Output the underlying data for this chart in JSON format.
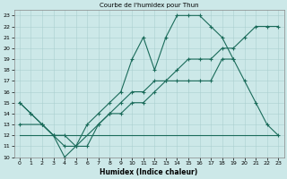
{
  "title": "Courbe de l'humidex pour Thun",
  "xlabel": "Humidex (Indice chaleur)",
  "xlim": [
    -0.5,
    23.5
  ],
  "ylim": [
    10,
    23.5
  ],
  "yticks": [
    10,
    11,
    12,
    13,
    14,
    15,
    16,
    17,
    18,
    19,
    20,
    21,
    22,
    23
  ],
  "xticks": [
    0,
    1,
    2,
    3,
    4,
    5,
    6,
    7,
    8,
    9,
    10,
    11,
    12,
    13,
    14,
    15,
    16,
    17,
    18,
    19,
    20,
    21,
    22,
    23
  ],
  "bg_color": "#cce8e8",
  "line_color": "#1a6b5a",
  "flat_line_x": [
    0,
    23
  ],
  "flat_line_y": [
    12,
    12
  ],
  "line2_x": [
    0,
    2,
    3,
    4,
    5,
    7,
    8,
    9,
    10,
    11,
    12,
    13,
    14,
    15,
    16,
    17,
    18,
    19,
    20,
    21,
    22,
    23
  ],
  "line2_y": [
    13,
    13,
    12,
    11,
    11,
    13,
    14,
    15,
    16,
    16,
    17,
    17,
    18,
    19,
    19,
    19,
    20,
    20,
    21,
    22,
    22,
    22
  ],
  "line3_x": [
    0,
    1,
    2,
    3,
    4,
    5,
    6,
    7,
    8,
    9,
    10,
    11,
    12,
    13,
    14,
    15,
    16,
    17,
    18,
    19,
    20,
    21,
    22,
    23
  ],
  "line3_y": [
    15,
    14,
    13,
    12,
    12,
    11,
    11,
    13,
    14,
    14,
    15,
    15,
    16,
    17,
    17,
    17,
    17,
    17,
    19,
    19,
    17,
    15,
    13,
    12
  ],
  "line4_x": [
    0,
    1,
    2,
    3,
    4,
    5,
    6,
    7,
    8,
    9,
    10,
    11,
    12,
    13,
    14,
    15,
    16,
    17,
    18,
    19
  ],
  "line4_y": [
    15,
    14,
    13,
    12,
    10,
    11,
    13,
    14,
    15,
    16,
    19,
    21,
    18,
    21,
    23,
    23,
    23,
    22,
    21,
    19
  ]
}
